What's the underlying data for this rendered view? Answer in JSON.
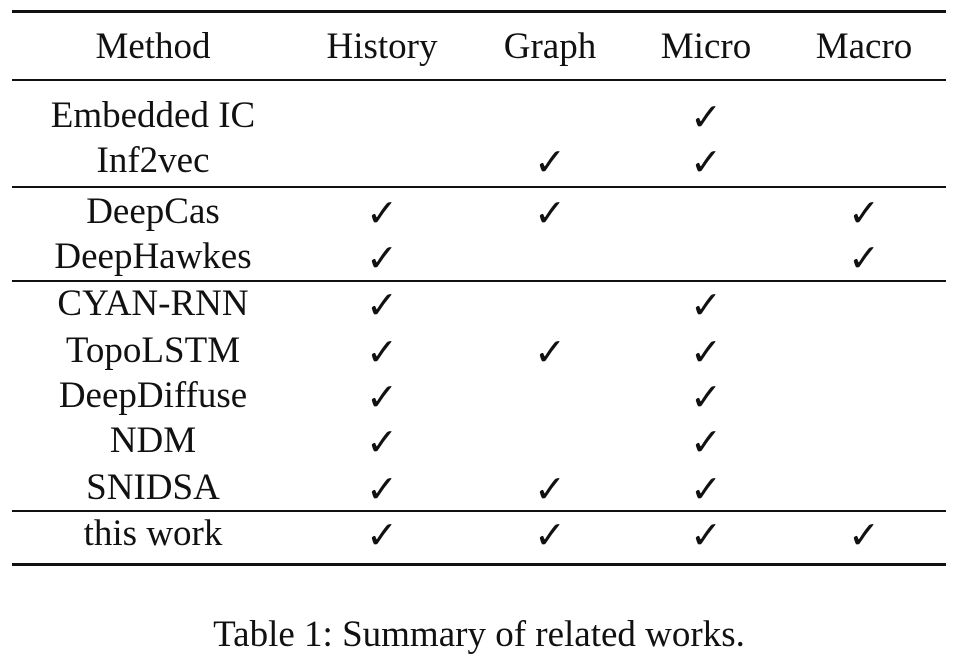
{
  "table": {
    "columns": [
      "Method",
      "History",
      "Graph",
      "Micro",
      "Macro"
    ],
    "check_symbol": "✓",
    "rows": [
      {
        "method": "Embedded IC",
        "history": false,
        "graph": false,
        "micro": true,
        "macro": false
      },
      {
        "method": "Inf2vec",
        "history": false,
        "graph": true,
        "micro": true,
        "macro": false
      },
      {
        "method": "DeepCas",
        "history": true,
        "graph": true,
        "micro": false,
        "macro": true
      },
      {
        "method": "DeepHawkes",
        "history": true,
        "graph": false,
        "micro": false,
        "macro": true
      },
      {
        "method": "CYAN-RNN",
        "history": true,
        "graph": false,
        "micro": true,
        "macro": false
      },
      {
        "method": "TopoLSTM",
        "history": true,
        "graph": true,
        "micro": true,
        "macro": false
      },
      {
        "method": "DeepDiffuse",
        "history": true,
        "graph": false,
        "micro": true,
        "macro": false
      },
      {
        "method": "NDM",
        "history": true,
        "graph": false,
        "micro": true,
        "macro": false
      },
      {
        "method": "SNIDSA",
        "history": true,
        "graph": true,
        "micro": true,
        "macro": false
      },
      {
        "method": "this work",
        "history": true,
        "graph": true,
        "micro": true,
        "macro": true
      }
    ]
  },
  "caption": "Table 1: Summary of related works."
}
